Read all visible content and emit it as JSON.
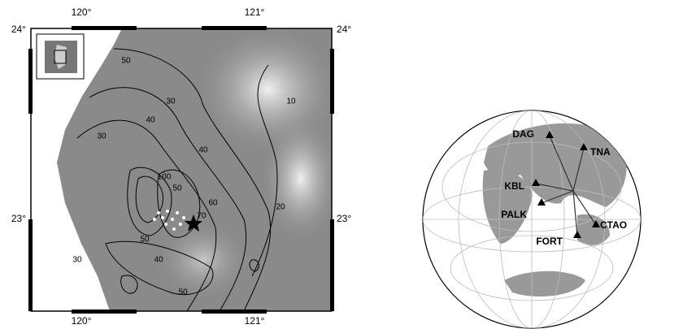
{
  "left_map": {
    "x_labels": [
      "120°",
      "121°"
    ],
    "y_labels": [
      "24°",
      "23°"
    ],
    "contour_labels": [
      "50",
      "30",
      "40",
      "30",
      "10",
      "40",
      "50",
      "100",
      "60",
      "70",
      "50",
      "20",
      "30",
      "50",
      "40"
    ]
  },
  "right_map": {
    "stations": [
      "DAG",
      "TNA",
      "KBL",
      "PALK",
      "CTAO",
      "FORT"
    ]
  }
}
